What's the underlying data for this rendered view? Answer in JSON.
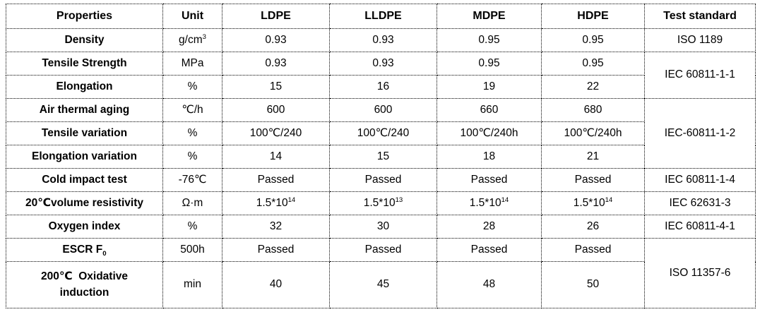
{
  "table": {
    "columns": [
      "Properties",
      "Unit",
      "LDPE",
      "LLDPE",
      "MDPE",
      "HDPE",
      "Test standard"
    ],
    "rows": [
      {
        "property": "Density",
        "unit": "g/cm^{3}",
        "values": [
          "0.93",
          "0.93",
          "0.95",
          "0.95"
        ],
        "standard": "ISO 1189",
        "standard_rowspan": 1
      },
      {
        "property": "Tensile Strength",
        "unit": "MPa",
        "values": [
          "0.93",
          "0.93",
          "0.95",
          "0.95"
        ],
        "standard": "IEC 60811-1-1",
        "standard_rowspan": 2
      },
      {
        "property": "Elongation",
        "unit": "%",
        "values": [
          "15",
          "16",
          "19",
          "22"
        ],
        "standard": null
      },
      {
        "property": "Air thermal aging",
        "unit": "℃/h",
        "values": [
          "600",
          "600",
          "660",
          "680"
        ],
        "standard": "IEC-60811-1-2",
        "standard_rowspan": 3
      },
      {
        "property": "Tensile variation",
        "unit": "%",
        "values": [
          "100℃/240",
          "100℃/240",
          "100℃/240h",
          "100℃/240h"
        ],
        "standard": null
      },
      {
        "property": "Elongation variation",
        "unit": "%",
        "values": [
          "14",
          "15",
          "18",
          "21"
        ],
        "standard": null
      },
      {
        "property": "Cold impact test",
        "unit": "-76℃",
        "values": [
          "Passed",
          "Passed",
          "Passed",
          "Passed"
        ],
        "standard": "IEC 60811-1-4",
        "standard_rowspan": 1
      },
      {
        "property": "20℃volume resistivity",
        "unit": "Ω·m",
        "values": [
          "1.5*10^{14}",
          "1.5*10^{13}",
          "1.5*10^{14}",
          "1.5*10^{14}"
        ],
        "standard": "IEC 62631-3",
        "standard_rowspan": 1
      },
      {
        "property": "Oxygen index",
        "unit": "%",
        "values": [
          "32",
          "30",
          "28",
          "26"
        ],
        "standard": "IEC 60811-4-1",
        "standard_rowspan": 1
      },
      {
        "property": "ESCR F_{0}",
        "unit": "500h",
        "values": [
          "Passed",
          "Passed",
          "Passed",
          "Passed"
        ],
        "standard": "ISO 11357-6",
        "standard_rowspan": 2
      },
      {
        "property": "200℃  Oxidative\ninduction",
        "unit": "min",
        "values": [
          "40",
          "45",
          "48",
          "50"
        ],
        "standard": null
      }
    ]
  }
}
